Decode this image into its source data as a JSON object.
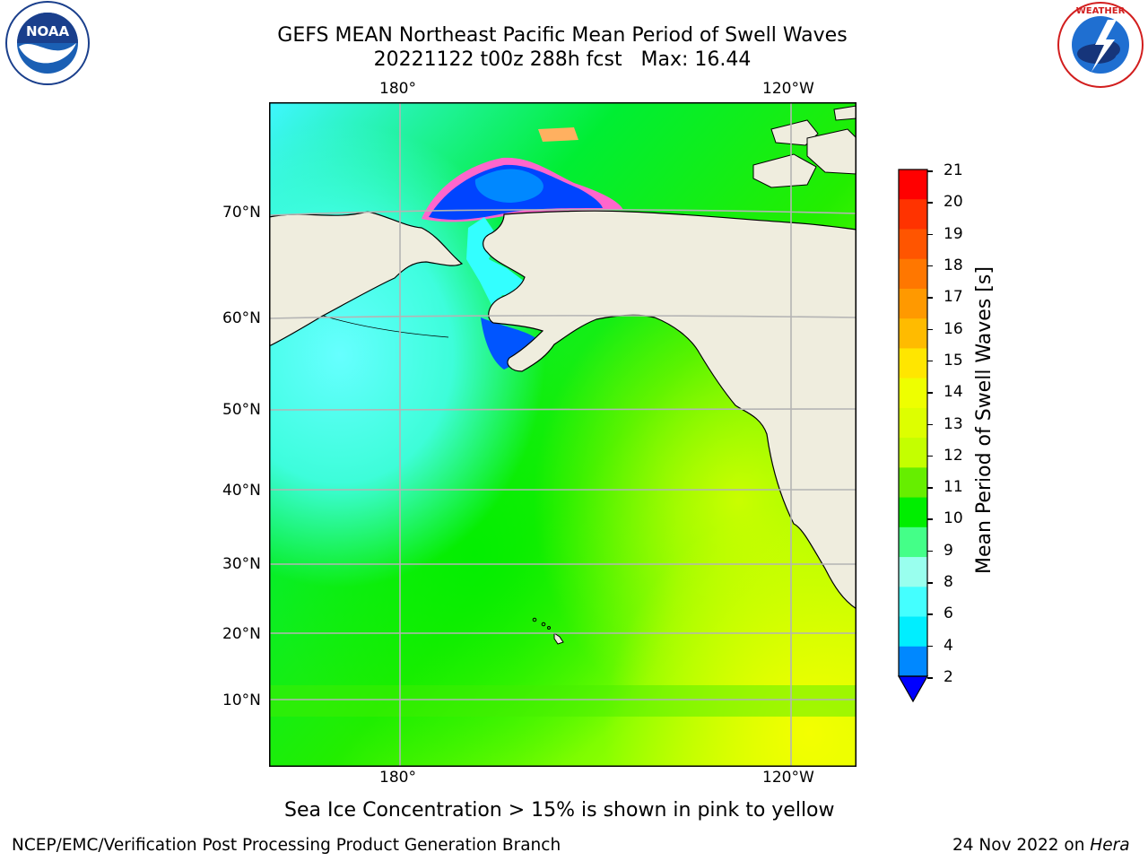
{
  "header": {
    "title_line1": "GEFS MEAN Northeast Pacific Mean Period of Swell Waves",
    "title_line2": "20221122 t00z 288h fcst   Max: 16.44"
  },
  "logos": {
    "left": {
      "icon": "noaa-logo",
      "text": "NOAA"
    },
    "right": {
      "icon": "national-weather-service-logo",
      "text": "NATIONAL WEATHER SERVICE"
    }
  },
  "map": {
    "lon_labels_top": [
      "180°",
      "120°W"
    ],
    "lon_labels_bottom": [
      "180°",
      "120°W"
    ],
    "lat_labels": [
      "70°N",
      "60°N",
      "50°N",
      "40°N",
      "30°N",
      "20°N",
      "10°N"
    ],
    "colors": {
      "land": "#efedde",
      "grid": "#b4b4b4",
      "coast": "#000000"
    }
  },
  "colorbar": {
    "label": "Mean Period of Swell Waves [s]",
    "ticks": [
      "21",
      "20",
      "19",
      "18",
      "17",
      "16",
      "15",
      "14",
      "13",
      "12",
      "11",
      "10",
      "9",
      "8",
      "6",
      "4",
      "2"
    ],
    "colors_top_to_bottom": [
      "#ff0000",
      "#ff3300",
      "#ff5500",
      "#ff7700",
      "#ff9900",
      "#ffbb00",
      "#ffe600",
      "#eeff00",
      "#ddff00",
      "#c4ff00",
      "#66ee00",
      "#00ee00",
      "#44ff88",
      "#99ffee",
      "#44ffff",
      "#00eeff",
      "#0088ff"
    ],
    "under_color": "#0000ff"
  },
  "note": "Sea Ice Concentration > 15% is shown in pink to yellow",
  "footer": {
    "left": "NCEP/EMC/Verification Post Processing Product Generation Branch",
    "date": "24 Nov 2022 on ",
    "machine": "Hera"
  }
}
